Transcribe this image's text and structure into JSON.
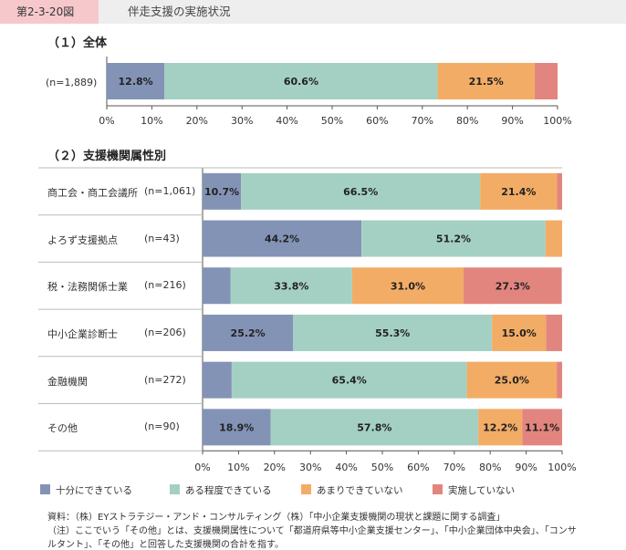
{
  "header": {
    "figure_no": "第2-3-20図",
    "title": "伴走支援の実施状況"
  },
  "colors": {
    "series": [
      "#8393b6",
      "#a4d0c4",
      "#f2ac65",
      "#e3857f"
    ]
  },
  "chart_data": [
    {
      "type": "bar",
      "orientation": "horizontal",
      "stacked": true,
      "title": "（１）全体",
      "categories": [
        "(n=1,889)"
      ],
      "series": [
        {
          "name": "十分にできている",
          "values": [
            12.8
          ],
          "labels": [
            "12.8%"
          ]
        },
        {
          "name": "ある程度できている",
          "values": [
            60.6
          ],
          "labels": [
            "60.6%"
          ]
        },
        {
          "name": "あまりできていない",
          "values": [
            21.5
          ],
          "labels": [
            "21.5%"
          ]
        },
        {
          "name": "実施していない",
          "values": [
            5.1
          ],
          "labels": [
            ""
          ]
        }
      ],
      "xlim": [
        0,
        100
      ],
      "xticks": [
        "0%",
        "10%",
        "20%",
        "30%",
        "40%",
        "50%",
        "60%",
        "70%",
        "80%",
        "90%",
        "100%"
      ]
    },
    {
      "type": "bar",
      "orientation": "horizontal",
      "stacked": true,
      "title": "（２）支援機関属性別",
      "categories": [
        "商工会・商工会議所",
        "よろず支援拠点",
        "税・法務関係士業",
        "中小企業診断士",
        "金融機関",
        "その他"
      ],
      "n_labels": [
        "(n=1,061)",
        "(n=43)",
        "(n=216)",
        "(n=206)",
        "(n=272)",
        "(n=90)"
      ],
      "series": [
        {
          "name": "十分にできている",
          "values": [
            10.7,
            44.2,
            7.8,
            25.2,
            8.1,
            18.9
          ],
          "labels": [
            "10.7%",
            "44.2%",
            "",
            "25.2%",
            "",
            "18.9%"
          ]
        },
        {
          "name": "ある程度できている",
          "values": [
            66.5,
            51.2,
            33.8,
            55.3,
            65.4,
            57.8
          ],
          "labels": [
            "66.5%",
            "51.2%",
            "33.8%",
            "55.3%",
            "65.4%",
            "57.8%"
          ]
        },
        {
          "name": "あまりできていない",
          "values": [
            21.4,
            4.6,
            31.0,
            15.0,
            25.0,
            12.2
          ],
          "labels": [
            "21.4%",
            "",
            "31.0%",
            "15.0%",
            "25.0%",
            "12.2%"
          ]
        },
        {
          "name": "実施していない",
          "values": [
            1.4,
            0.0,
            27.3,
            4.5,
            1.5,
            11.1
          ],
          "labels": [
            "",
            "",
            "27.3%",
            "",
            "",
            "11.1%"
          ]
        }
      ],
      "xlim": [
        0,
        100
      ],
      "xticks": [
        "0%",
        "10%",
        "20%",
        "30%",
        "40%",
        "50%",
        "60%",
        "70%",
        "80%",
        "90%",
        "100%"
      ]
    }
  ],
  "legend": [
    "十分にできている",
    "ある程度できている",
    "あまりできていない",
    "実施していない"
  ],
  "notes": {
    "source": "資料：（株）EYストラテジー・アンド・コンサルティング（株）「中小企業支援機関の現状と課題に関する調査」",
    "note1": "（注）ここでいう「その他」とは、支援機関属性について「都道府県等中小企業支援センター」、「中小企業団体中央会」、「コンサ",
    "note2": "ルタント」、「その他」と回答した支援機関の合計を指す。"
  }
}
